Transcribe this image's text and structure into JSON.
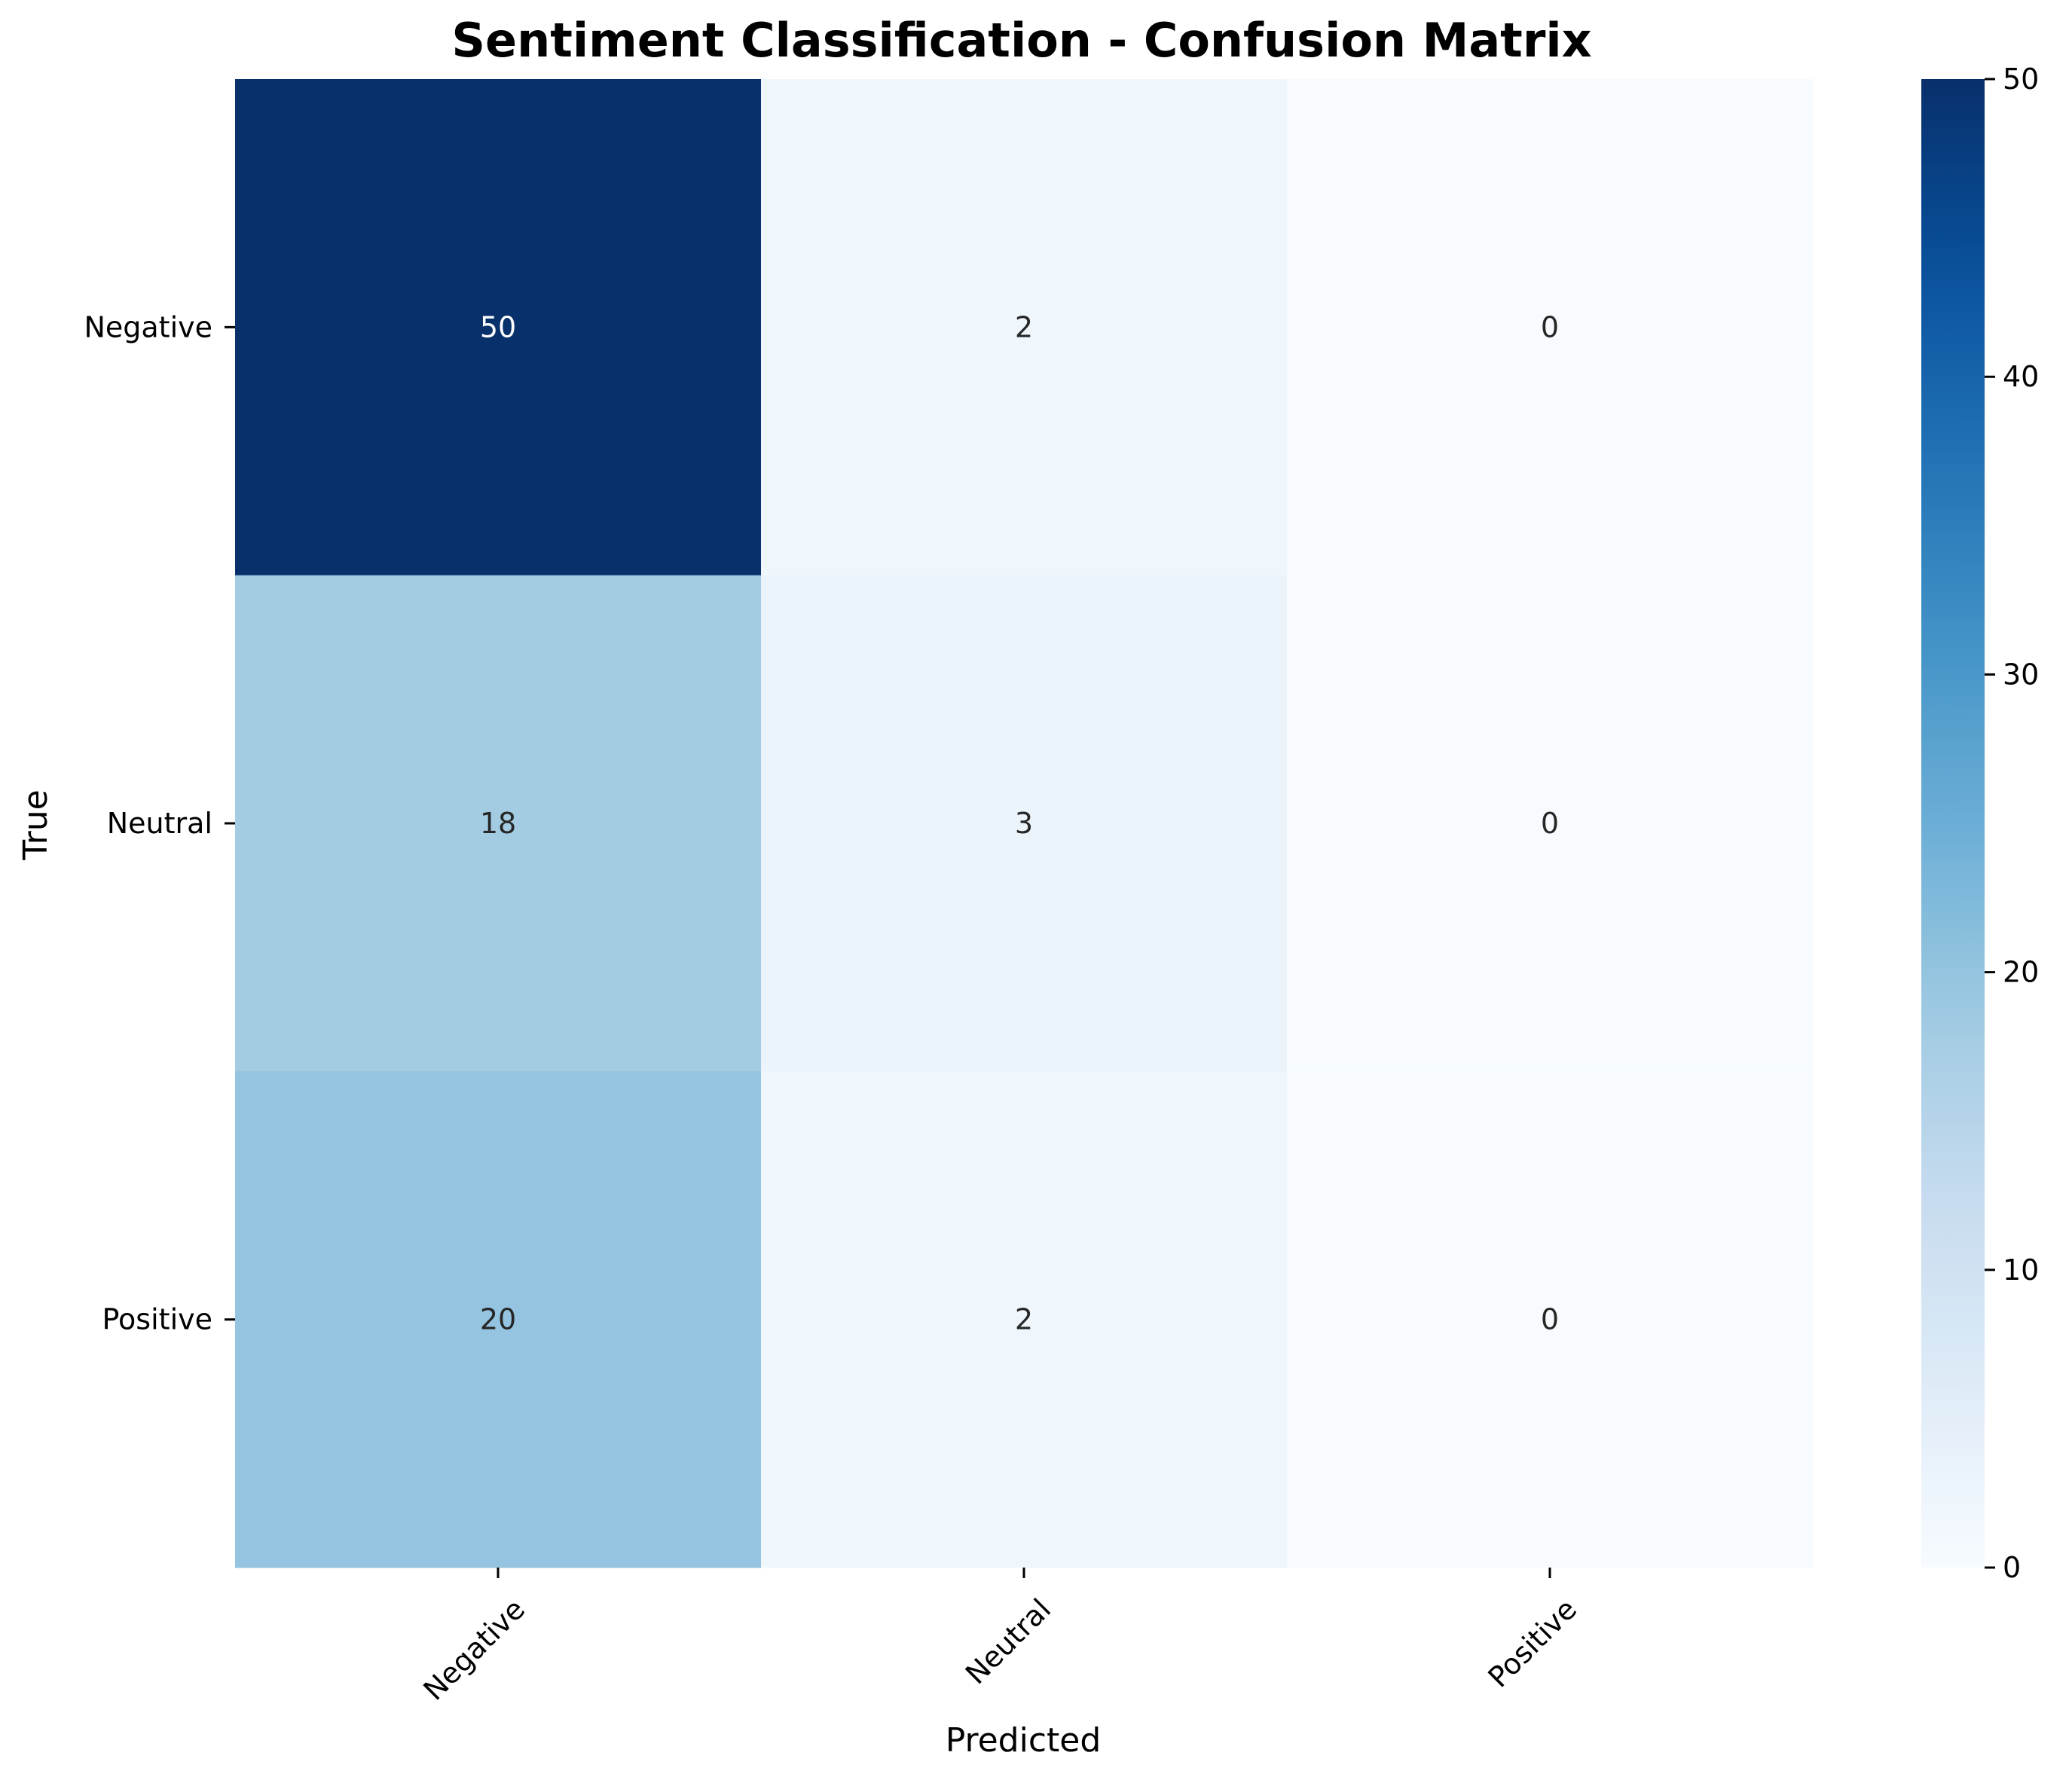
{
  "chart_data": {
    "type": "heatmap",
    "title": "Sentiment Classification - Confusion Matrix",
    "xlabel": "Predicted",
    "ylabel": "True",
    "x_categories": [
      "Negative",
      "Neutral",
      "Positive"
    ],
    "y_categories": [
      "Negative",
      "Neutral",
      "Positive"
    ],
    "values": [
      [
        50,
        2,
        0
      ],
      [
        18,
        3,
        0
      ],
      [
        20,
        2,
        0
      ]
    ],
    "colormap": "Blues",
    "colorbar": {
      "range": [
        0,
        50
      ],
      "ticks": [
        0,
        10,
        20,
        30,
        40,
        50
      ]
    },
    "annotations": true,
    "x_tick_rotation_deg": 45
  }
}
